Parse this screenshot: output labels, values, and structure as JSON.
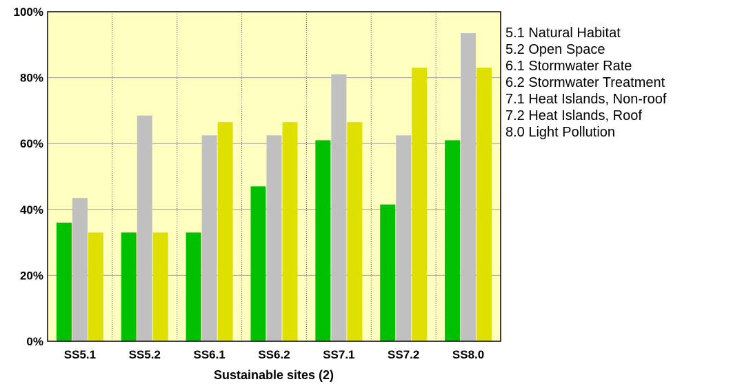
{
  "chart_data": {
    "type": "bar",
    "xlabel": "Sustainable sites (2)",
    "ylabel": "",
    "ylim": [
      0,
      100
    ],
    "yticks": [
      "0%",
      "20%",
      "40%",
      "60%",
      "80%",
      "100%"
    ],
    "categories": [
      "SS5.1",
      "SS5.2",
      "SS6.1",
      "SS6.2",
      "SS7.1",
      "SS7.2",
      "SS8.0"
    ],
    "series": [
      {
        "color": "#00c000",
        "values": [
          36,
          33,
          33,
          47,
          61,
          41.5,
          61
        ]
      },
      {
        "color": "#c0c0c0",
        "values": [
          43.5,
          68.5,
          62.5,
          62.5,
          81,
          62.5,
          93.5
        ]
      },
      {
        "color": "#e0e000",
        "values": [
          33,
          33,
          66.5,
          66.5,
          66.5,
          83,
          83
        ]
      }
    ],
    "plot_background": "#ffffc0",
    "grid": true,
    "legend_position": "right"
  },
  "legend": {
    "items": [
      "5.1 Natural Habitat",
      "5.2 Open Space",
      "6.1 Stormwater Rate",
      "6.2 Stormwater Treatment",
      "7.1 Heat Islands, Non-roof",
      "7.2 Heat Islands, Roof",
      "8.0 Light Pollution"
    ]
  }
}
